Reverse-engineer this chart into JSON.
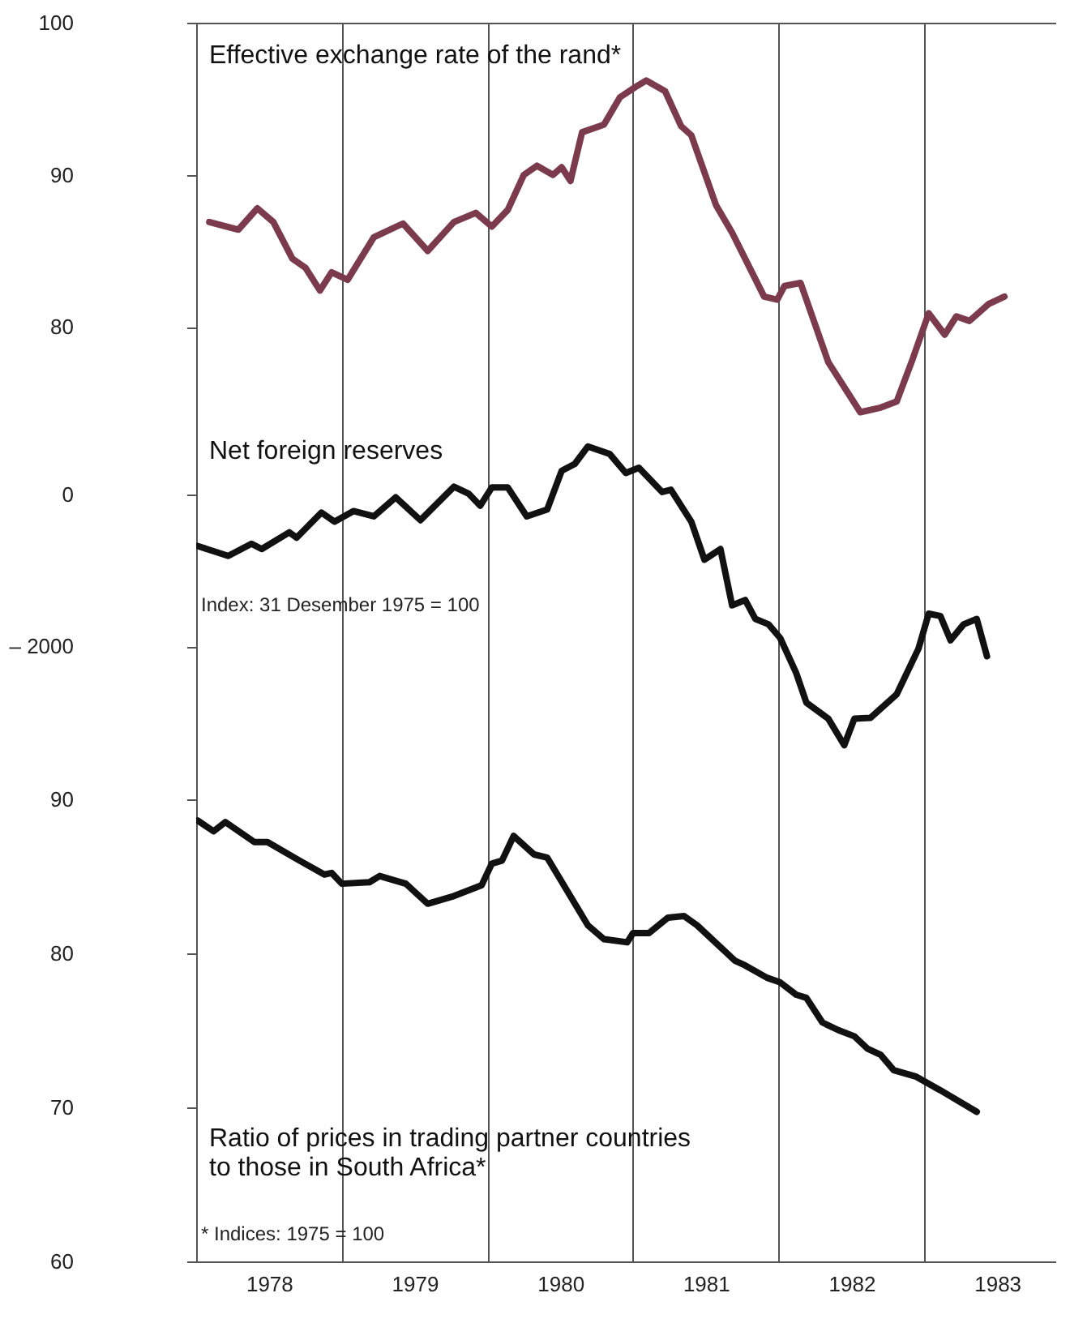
{
  "chart_data": [
    {
      "type": "line",
      "xlim": [
        1978,
        1983.9
      ],
      "xticks": [
        {
          "value": 1978,
          "label": null
        },
        {
          "value": 1979,
          "label": null
        },
        {
          "value": 1980,
          "label": null
        },
        {
          "value": 1981,
          "label": null
        },
        {
          "value": 1982,
          "label": null
        },
        {
          "value": 1983,
          "label": null
        }
      ],
      "ylim": [
        74,
        100
      ],
      "yticks": [
        80,
        90,
        100
      ],
      "tick_labels": "y",
      "grid": "x",
      "legend": false,
      "marker": "none",
      "line_style": "solid",
      "series": [
        {
          "name": "Effective exchange rate of the rand*",
          "color": "#7b3b4c",
          "x": [
            1978.09,
            1978.29,
            1978.42,
            1978.53,
            1978.66,
            1978.75,
            1978.85,
            1978.93,
            1979.04,
            1979.22,
            1979.42,
            1979.59,
            1979.77,
            1979.92,
            1980.03,
            1980.14,
            1980.25,
            1980.34,
            1980.45,
            1980.51,
            1980.57,
            1980.65,
            1980.8,
            1980.91,
            1981.02,
            1981.09,
            1981.22,
            1981.33,
            1981.4,
            1981.57,
            1981.68,
            1981.9,
            1981.99,
            1982.04,
            1982.15,
            1982.34,
            1982.56,
            1982.7,
            1982.81,
            1982.92,
            1983.03,
            1983.14,
            1983.22,
            1983.31,
            1983.44,
            1983.55
          ],
          "values": [
            86.9,
            86.4,
            87.8,
            86.9,
            84.5,
            83.9,
            82.4,
            83.6,
            83.1,
            85.9,
            86.8,
            85.0,
            86.9,
            87.5,
            86.6,
            87.7,
            90.0,
            90.6,
            90.0,
            90.5,
            89.6,
            92.8,
            93.3,
            95.1,
            95.8,
            96.2,
            95.5,
            93.2,
            92.6,
            88.0,
            86.2,
            82.0,
            81.8,
            82.7,
            82.9,
            77.7,
            74.4,
            74.7,
            75.1,
            77.9,
            80.9,
            79.5,
            80.7,
            80.4,
            81.5,
            82.0
          ]
        }
      ]
    },
    {
      "type": "line",
      "xlim": [
        1978,
        1983.9
      ],
      "xticks": [
        {
          "value": 1978,
          "label": null
        },
        {
          "value": 1979,
          "label": null
        },
        {
          "value": 1980,
          "label": null
        },
        {
          "value": 1981,
          "label": null
        },
        {
          "value": 1982,
          "label": null
        },
        {
          "value": 1983,
          "label": null
        }
      ],
      "ylim": [
        -3500,
        1000
      ],
      "yticks": [
        0,
        {
          "value": -2000,
          "label": "– 2000"
        }
      ],
      "tick_labels": "y",
      "grid": "x",
      "legend": false,
      "marker": "none",
      "line_style": "solid",
      "annotations": [
        "Index: 31 Desember 1975 = 100"
      ],
      "series": [
        {
          "name": "Net foreign reserves",
          "color": "#111111",
          "x": [
            1978.01,
            1978.22,
            1978.38,
            1978.45,
            1978.64,
            1978.69,
            1978.86,
            1978.95,
            1979.08,
            1979.22,
            1979.37,
            1979.54,
            1979.77,
            1979.87,
            1979.95,
            1980.03,
            1980.14,
            1980.27,
            1980.41,
            1980.51,
            1980.6,
            1980.69,
            1980.84,
            1980.95,
            1981.04,
            1981.2,
            1981.26,
            1981.4,
            1981.49,
            1981.6,
            1981.68,
            1981.77,
            1981.84,
            1981.93,
            1982.01,
            1982.12,
            1982.19,
            1982.34,
            1982.45,
            1982.52,
            1982.63,
            1982.81,
            1982.96,
            1983.03,
            1983.11,
            1983.18,
            1983.27,
            1983.36,
            1983.43
          ],
          "values": [
            -680,
            -810,
            -650,
            -720,
            -500,
            -570,
            -240,
            -360,
            -220,
            -290,
            -40,
            -340,
            100,
            10,
            -150,
            90,
            90,
            -290,
            -200,
            310,
            400,
            630,
            530,
            280,
            350,
            30,
            60,
            -360,
            -860,
            -720,
            -1460,
            -1390,
            -1640,
            -1710,
            -1890,
            -2350,
            -2740,
            -2950,
            -3300,
            -2950,
            -2940,
            -2630,
            -2030,
            -1570,
            -1600,
            -1920,
            -1710,
            -1640,
            -2130
          ]
        }
      ]
    },
    {
      "type": "line",
      "xlim": [
        1978,
        1983.9
      ],
      "xticks": [
        {
          "value": 1978,
          "label": null
        },
        {
          "value": 1978.5,
          "label": "1978"
        },
        {
          "value": 1979,
          "label": null
        },
        {
          "value": 1979.5,
          "label": "1979"
        },
        {
          "value": 1980,
          "label": null
        },
        {
          "value": 1980.5,
          "label": "1980"
        },
        {
          "value": 1981,
          "label": null
        },
        {
          "value": 1981.5,
          "label": "1981"
        },
        {
          "value": 1982,
          "label": null
        },
        {
          "value": 1982.5,
          "label": "1982"
        },
        {
          "value": 1983,
          "label": null
        },
        {
          "value": 1983.5,
          "label": "1983"
        }
      ],
      "ylim": [
        60,
        92.5
      ],
      "yticks": [
        60,
        70,
        80,
        90
      ],
      "grid": "x",
      "legend": false,
      "marker": "none",
      "line_style": "solid",
      "annotations": [
        "* Indices: 1975 = 100"
      ],
      "series": [
        {
          "name": "Ratio of prices in trading partner countries\nto those in South Africa*",
          "color": "#111111",
          "x": [
            1978.01,
            1978.12,
            1978.2,
            1978.4,
            1978.49,
            1978.71,
            1978.88,
            1978.93,
            1979.0,
            1979.19,
            1979.26,
            1979.44,
            1979.59,
            1979.77,
            1979.96,
            1980.03,
            1980.1,
            1980.18,
            1980.32,
            1980.41,
            1980.69,
            1980.8,
            1980.96,
            1981.0,
            1981.11,
            1981.24,
            1981.35,
            1981.44,
            1981.7,
            1981.77,
            1981.92,
            1982.01,
            1982.12,
            1982.19,
            1982.3,
            1982.41,
            1982.52,
            1982.61,
            1982.7,
            1982.79,
            1982.94,
            1983.11,
            1983.36
          ],
          "values": [
            88.6,
            87.9,
            88.5,
            87.2,
            87.2,
            86.0,
            85.1,
            85.2,
            84.5,
            84.6,
            85.0,
            84.5,
            83.2,
            83.7,
            84.4,
            85.8,
            86.0,
            87.6,
            86.4,
            86.2,
            81.8,
            80.9,
            80.7,
            81.3,
            81.3,
            82.3,
            82.4,
            81.8,
            79.5,
            79.2,
            78.4,
            78.1,
            77.3,
            77.1,
            75.5,
            75.0,
            74.6,
            73.8,
            73.4,
            72.4,
            72.0,
            71.1,
            69.7
          ]
        }
      ]
    }
  ]
}
